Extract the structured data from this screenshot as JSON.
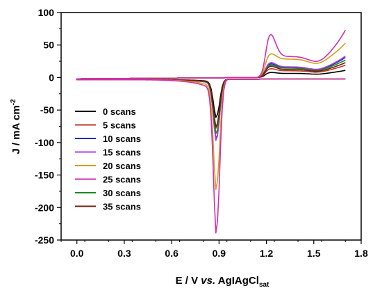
{
  "chart_data": {
    "type": "line",
    "xlabel": {
      "prefix": "E / V ",
      "vs": "vs.",
      "ref": " AgIAgCl",
      "sub": "sat"
    },
    "ylabel": {
      "main": "J / mA cm",
      "sup": "-2"
    },
    "xlim": [
      -0.1,
      1.8
    ],
    "ylim": [
      -250,
      100
    ],
    "xticks": [
      "0.0",
      "0.3",
      "0.6",
      "0.9",
      "1.2",
      "1.5",
      "1.8"
    ],
    "xtick_values": [
      0.0,
      0.3,
      0.6,
      0.9,
      1.2,
      1.5,
      1.8
    ],
    "yticks": [
      "100",
      "50",
      "0",
      "-50",
      "-100",
      "-150",
      "-200",
      "-250"
    ],
    "ytick_values": [
      100,
      50,
      0,
      -50,
      -100,
      -150,
      -200,
      -250
    ],
    "legend_position": "center-left",
    "series": [
      {
        "name": "0 scans",
        "color": "#000000",
        "peak_min": -56,
        "ox_max": 8,
        "ox_plateau": 6,
        "end": 10
      },
      {
        "name": "5 scans",
        "color": "#c0392b",
        "peak_min": -72,
        "ox_max": 14,
        "ox_plateau": 10,
        "end": 18
      },
      {
        "name": "10 scans",
        "color": "#1f2fb0",
        "peak_min": -88,
        "ox_max": 22,
        "ox_plateau": 15,
        "end": 30
      },
      {
        "name": "15 scans",
        "color": "#b03cf0",
        "peak_min": -90,
        "ox_max": 24,
        "ox_plateau": 16,
        "end": 32
      },
      {
        "name": "20 scans",
        "color": "#d4a017",
        "peak_min": -162,
        "ox_max": 38,
        "ox_plateau": 28,
        "end": 52
      },
      {
        "name": "25 scans",
        "color": "#d12fae",
        "peak_min": -226,
        "ox_max": 70,
        "ox_plateau": 32,
        "end": 72
      },
      {
        "name": "30 scans",
        "color": "#1a8a1a",
        "peak_min": -80,
        "ox_max": 20,
        "ox_plateau": 14,
        "end": 26
      },
      {
        "name": "35 scans",
        "color": "#6b1f10",
        "peak_min": -70,
        "ox_max": 18,
        "ox_plateau": 12,
        "end": 22
      }
    ]
  }
}
